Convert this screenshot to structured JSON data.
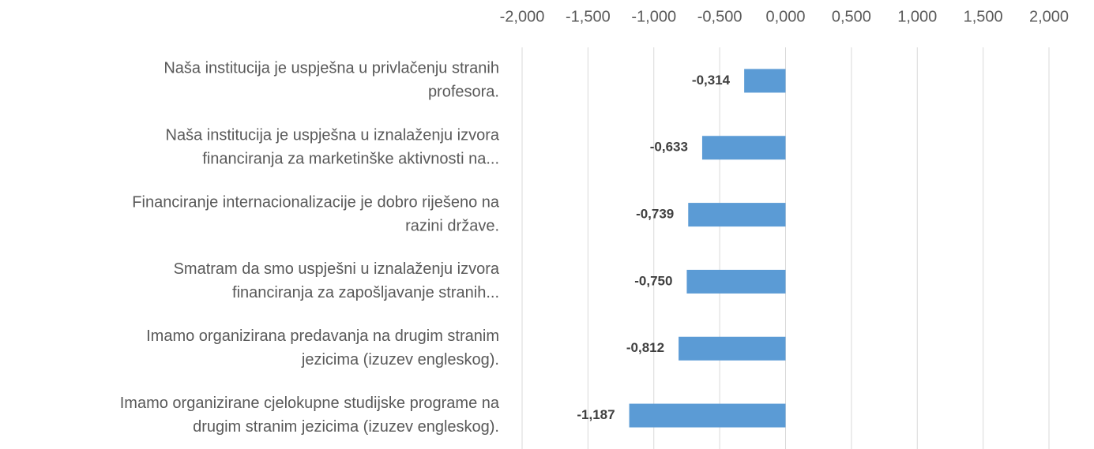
{
  "chart_data": {
    "type": "hbar",
    "categories": [
      [
        "Naša institucija je uspješna u privlačenju stranih",
        "profesora."
      ],
      [
        "Naša institucija je uspješna u iznalaženju izvora",
        "financiranja za marketinške aktivnosti na..."
      ],
      [
        "Financiranje internacionalizacije je dobro riješeno na",
        "razini države."
      ],
      [
        "Smatram da smo uspješni u iznalaženju izvora",
        "financiranja za zapošljavanje stranih..."
      ],
      [
        "Imamo organizirana predavanja na drugim stranim",
        "jezicima (izuzev engleskog)."
      ],
      [
        "Imamo organizirane cjelokupne studijske programe na",
        "drugim stranim jezicima (izuzev engleskog)."
      ]
    ],
    "values": [
      -0.314,
      -0.633,
      -0.739,
      -0.75,
      -0.812,
      -1.187
    ],
    "value_labels": [
      "-0,314",
      "-0,633",
      "-0,739",
      "-0,750",
      "-0,812",
      "-1,187"
    ],
    "color": "#5b9bd5",
    "xlim": [
      -2,
      2
    ],
    "xticks": [
      {
        "value": -2,
        "label": "-2,000"
      },
      {
        "value": -1.5,
        "label": "-1,500"
      },
      {
        "value": -1,
        "label": "-1,000"
      },
      {
        "value": -0.5,
        "label": "-0,500"
      },
      {
        "value": 0,
        "label": "0,000"
      },
      {
        "value": 0.5,
        "label": "0,500"
      },
      {
        "value": 1,
        "label": "1,000"
      },
      {
        "value": 1.5,
        "label": "1,500"
      },
      {
        "value": 2,
        "label": "2,000"
      }
    ],
    "grid": true
  }
}
